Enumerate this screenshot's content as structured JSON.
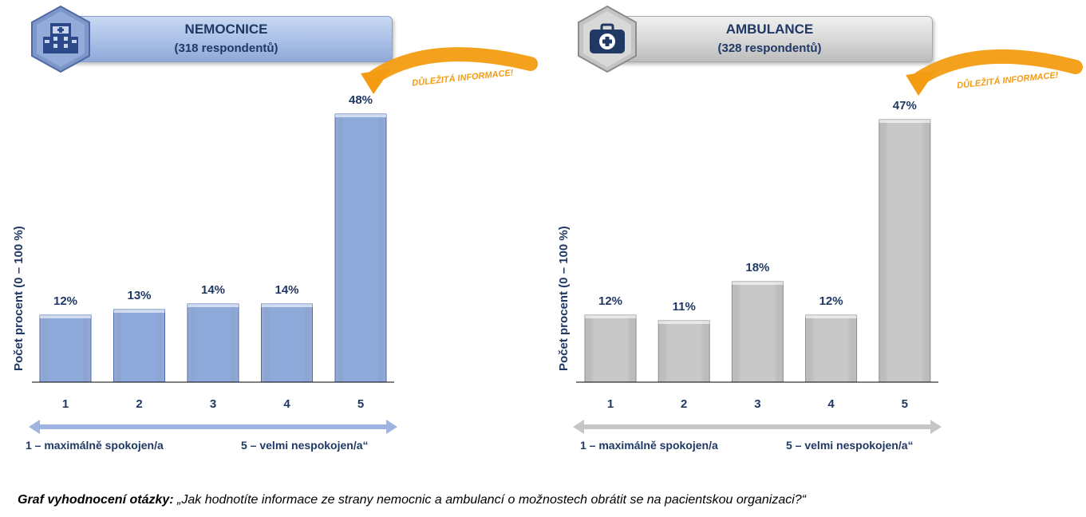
{
  "caption": {
    "lead": "Graf vyhodnocení otázky:",
    "text": " „Jak hodnotíte informace ze strany nemocnic a ambulancí o možnostech obrátit se na pacientskou organizaci?“"
  },
  "scale": {
    "left": "1 – maximálně spokojen/a",
    "right": "5 – velmi nespokojen/a“"
  },
  "chart_data": [
    {
      "type": "bar",
      "title": "NEMOCNICE",
      "subtitle": "(318 respondentů)",
      "ylabel": "Počet procent  (0 – 100 %)",
      "categories": [
        "1",
        "2",
        "3",
        "4",
        "5"
      ],
      "values": [
        12,
        13,
        14,
        14,
        48
      ],
      "data_labels": [
        "12%",
        "13%",
        "14%",
        "14%",
        "48%"
      ],
      "ylim": [
        0,
        100
      ],
      "annotation": "DŮLEŽITÁ INFORMACE!",
      "colors": {
        "bar": "#8eaadb",
        "bar_border": "#4a6bb0",
        "axis": "#1f3864",
        "arrow": "#9fb4e0",
        "callout": "#f39c12"
      },
      "icon": "hospital-icon",
      "grid": false
    },
    {
      "type": "bar",
      "title": "AMBULANCE",
      "subtitle": "(328 respondentů)",
      "ylabel": "Počet procent  (0 – 100 %)",
      "categories": [
        "1",
        "2",
        "3",
        "4",
        "5"
      ],
      "values": [
        12,
        11,
        18,
        12,
        47
      ],
      "data_labels": [
        "12%",
        "11%",
        "18%",
        "12%",
        "47%"
      ],
      "ylim": [
        0,
        100
      ],
      "annotation": "DŮLEŽITÁ INFORMACE!",
      "colors": {
        "bar": "#c8c8c8",
        "bar_border": "#8a8a8a",
        "axis": "#1f3864",
        "arrow": "#c6c6c6",
        "callout": "#f39c12"
      },
      "icon": "medical-bag-icon",
      "grid": false
    }
  ]
}
